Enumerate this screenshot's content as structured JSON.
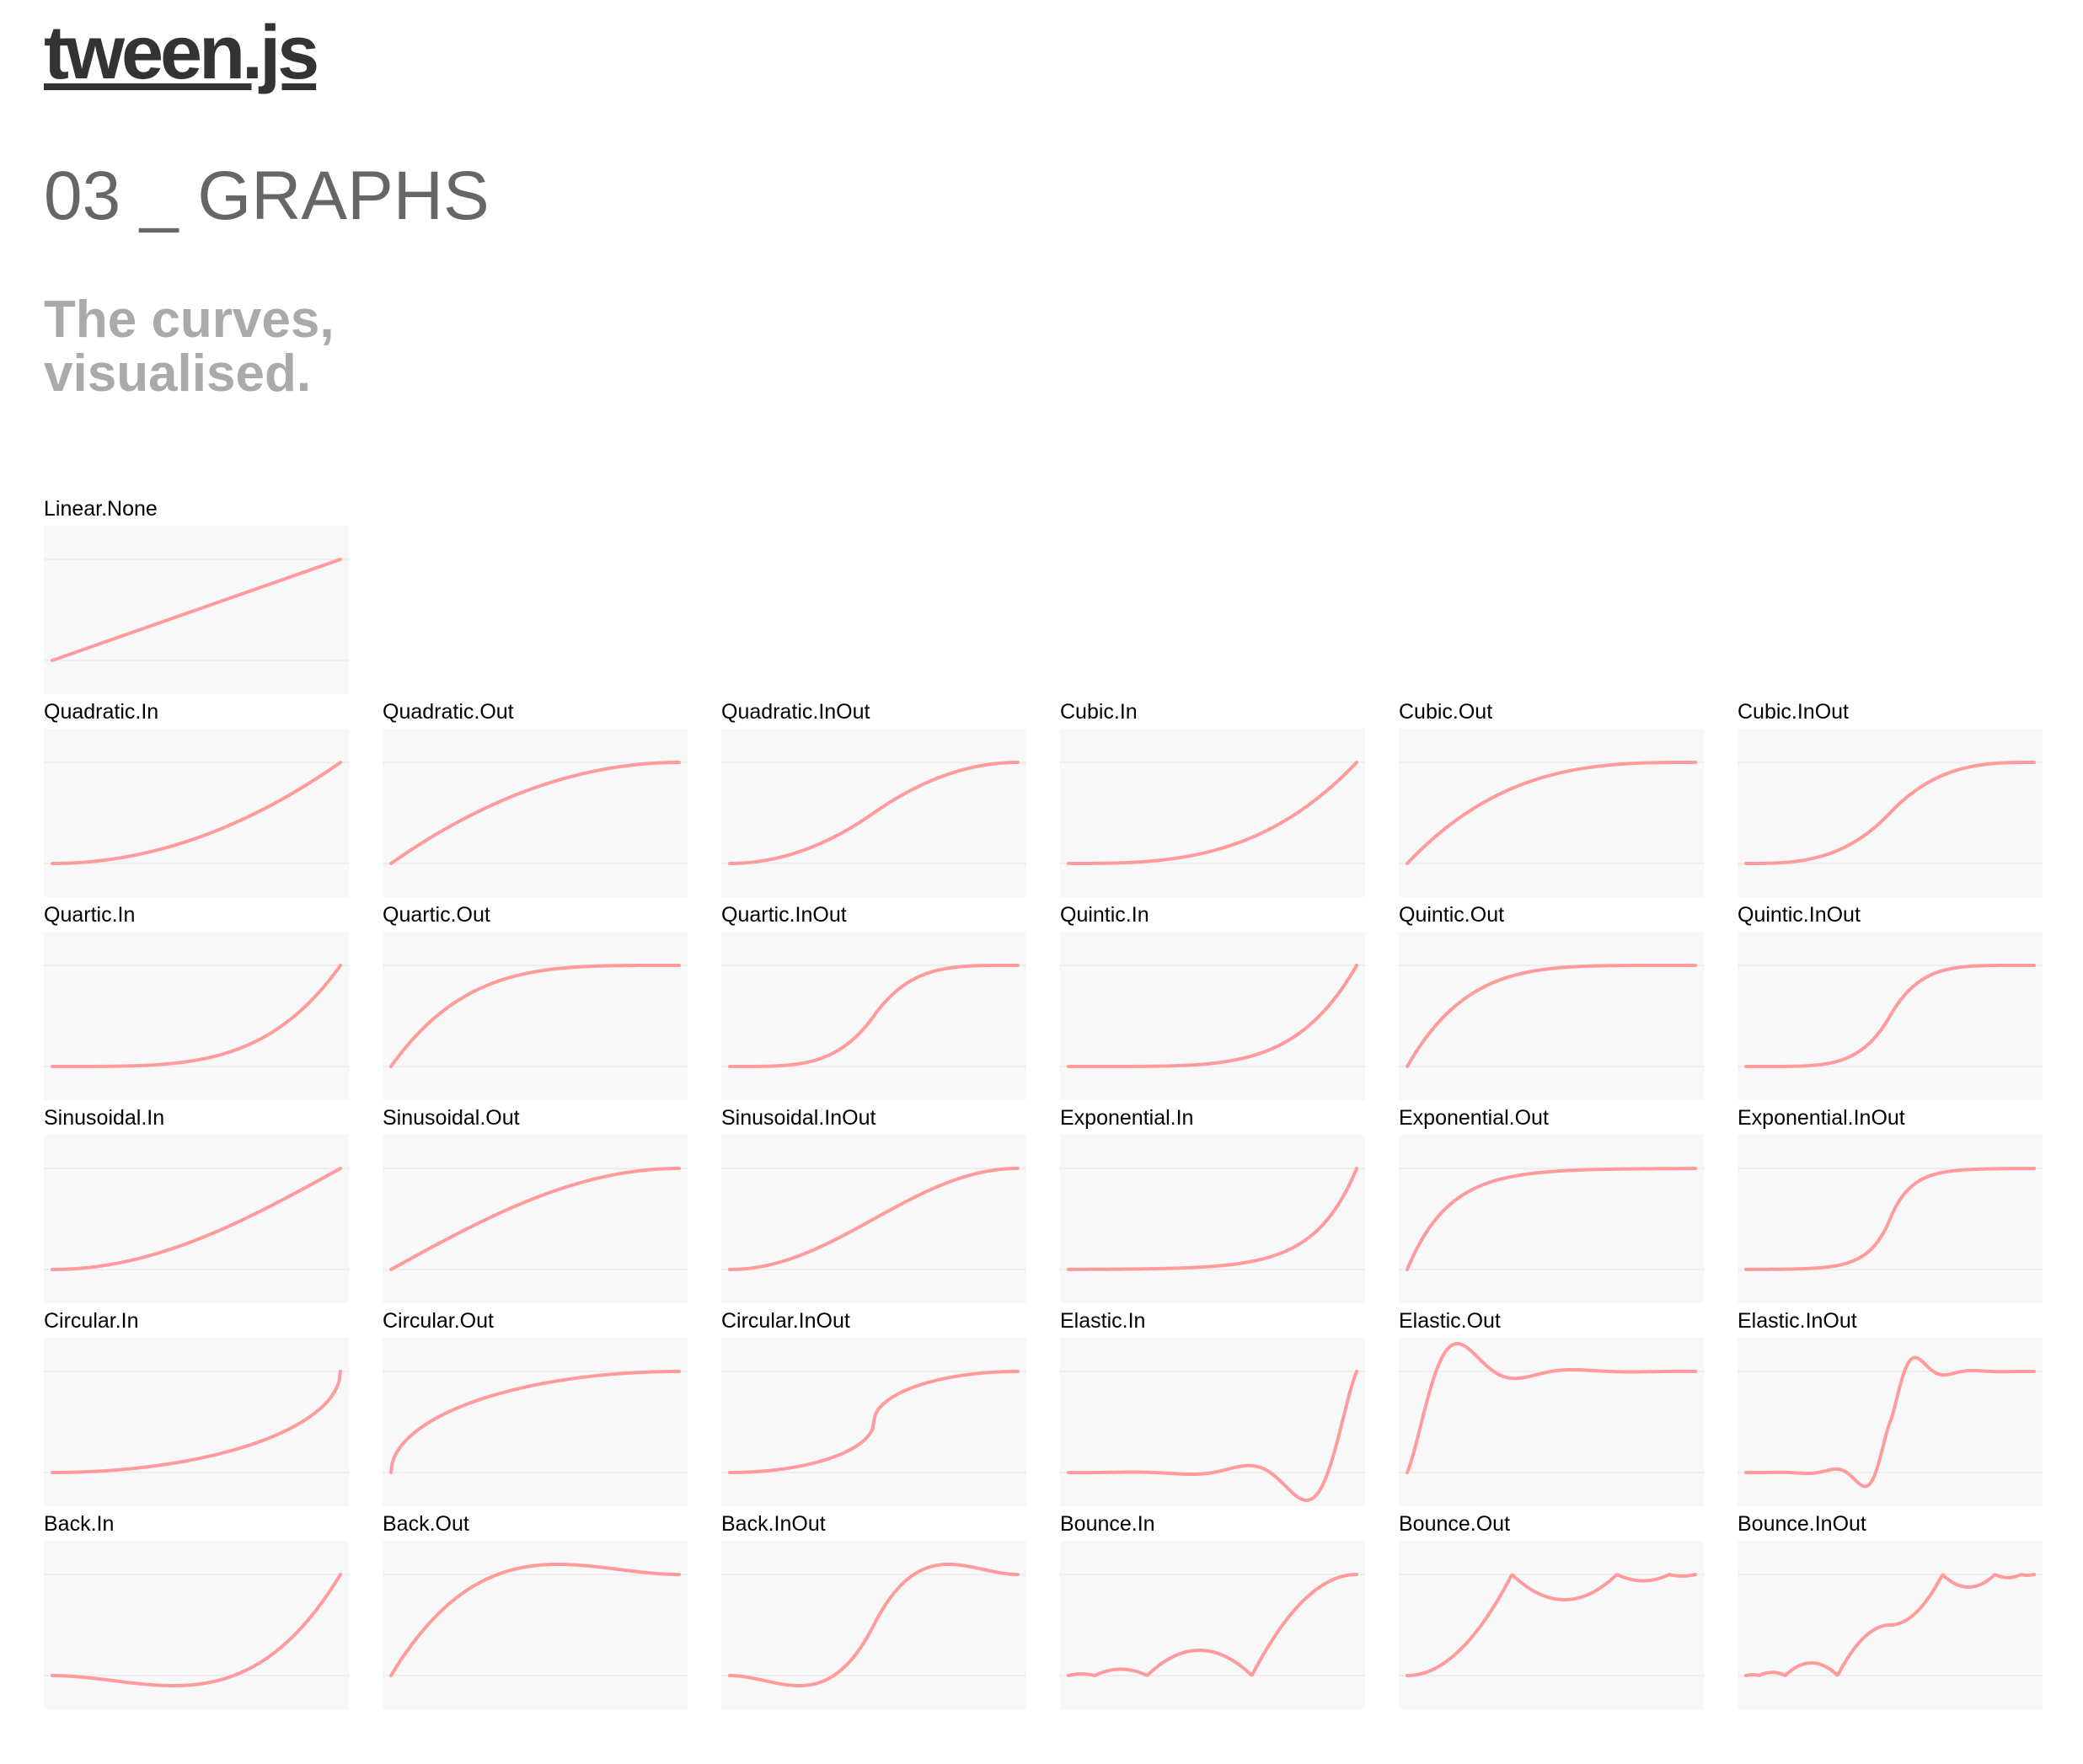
{
  "header": {
    "logo": "tween.js",
    "title": "03 _ GRAPHS",
    "subtitle_line1": "The curves,",
    "subtitle_line2": "visualised."
  },
  "colors": {
    "curve": "#ff9b9b",
    "panel_background": "#f8f8f8",
    "guide_line": "#eeeeee",
    "logo": "#333333",
    "title": "#666666",
    "subtitle": "#aaaaaa"
  },
  "chart_data": {
    "type": "line",
    "note_x": "normalized time 0-1",
    "graphs": [
      {
        "label": "Linear.None",
        "easing": "Linear.None"
      },
      {
        "label": "Quadratic.In",
        "easing": "Quadratic.In"
      },
      {
        "label": "Quadratic.Out",
        "easing": "Quadratic.Out"
      },
      {
        "label": "Quadratic.InOut",
        "easing": "Quadratic.InOut"
      },
      {
        "label": "Cubic.In",
        "easing": "Cubic.In"
      },
      {
        "label": "Cubic.Out",
        "easing": "Cubic.Out"
      },
      {
        "label": "Cubic.InOut",
        "easing": "Cubic.InOut"
      },
      {
        "label": "Quartic.In",
        "easing": "Quartic.In"
      },
      {
        "label": "Quartic.Out",
        "easing": "Quartic.Out"
      },
      {
        "label": "Quartic.InOut",
        "easing": "Quartic.InOut"
      },
      {
        "label": "Quintic.In",
        "easing": "Quintic.In"
      },
      {
        "label": "Quintic.Out",
        "easing": "Quintic.Out"
      },
      {
        "label": "Quintic.InOut",
        "easing": "Quintic.InOut"
      },
      {
        "label": "Sinusoidal.In",
        "easing": "Sinusoidal.In"
      },
      {
        "label": "Sinusoidal.Out",
        "easing": "Sinusoidal.Out"
      },
      {
        "label": "Sinusoidal.InOut",
        "easing": "Sinusoidal.InOut"
      },
      {
        "label": "Exponential.In",
        "easing": "Exponential.In"
      },
      {
        "label": "Exponential.Out",
        "easing": "Exponential.Out"
      },
      {
        "label": "Exponential.InOut",
        "easing": "Exponential.InOut"
      },
      {
        "label": "Circular.In",
        "easing": "Circular.In"
      },
      {
        "label": "Circular.Out",
        "easing": "Circular.Out"
      },
      {
        "label": "Circular.InOut",
        "easing": "Circular.InOut"
      },
      {
        "label": "Elastic.In",
        "easing": "Elastic.In"
      },
      {
        "label": "Elastic.Out",
        "easing": "Elastic.Out"
      },
      {
        "label": "Elastic.InOut",
        "easing": "Elastic.InOut"
      },
      {
        "label": "Back.In",
        "easing": "Back.In"
      },
      {
        "label": "Back.Out",
        "easing": "Back.Out"
      },
      {
        "label": "Back.InOut",
        "easing": "Back.InOut"
      },
      {
        "label": "Bounce.In",
        "easing": "Bounce.In"
      },
      {
        "label": "Bounce.Out",
        "easing": "Bounce.Out"
      },
      {
        "label": "Bounce.InOut",
        "easing": "Bounce.InOut"
      }
    ]
  }
}
